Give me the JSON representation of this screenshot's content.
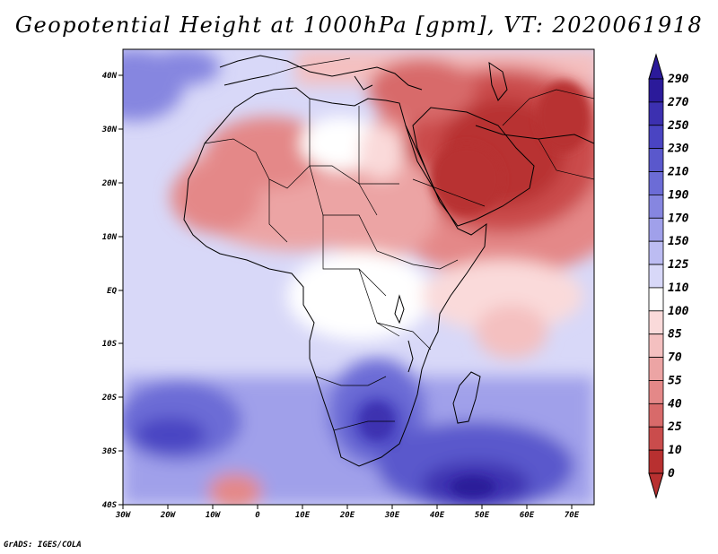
{
  "title": "Geopotential Height at 1000hPa [gpm], VT: 2020061918",
  "credit": "GrADS: IGES/COLA",
  "axes": {
    "x_ticks": [
      "30W",
      "20W",
      "10W",
      "0",
      "10E",
      "20E",
      "30E",
      "40E",
      "50E",
      "60E",
      "70E"
    ],
    "y_ticks": [
      "40N",
      "30N",
      "20N",
      "10N",
      "EQ",
      "10S",
      "20S",
      "30S",
      "40S"
    ]
  },
  "colorbar": {
    "labels": [
      "290",
      "270",
      "250",
      "230",
      "210",
      "190",
      "170",
      "150",
      "125",
      "110",
      "100",
      "85",
      "70",
      "55",
      "40",
      "25",
      "10",
      "0"
    ],
    "colors": [
      "#2b1a9a",
      "#3c30b0",
      "#4a44c2",
      "#5a58cc",
      "#6c6cd6",
      "#8686e0",
      "#a0a0ea",
      "#bcbcf2",
      "#d8d8f8",
      "#ffffff",
      "#fadada",
      "#f4c0c0",
      "#eca4a4",
      "#e48888",
      "#d86a6a",
      "#ca4c4c",
      "#b83030"
    ]
  },
  "map": {
    "projection": "lat-lon",
    "lon_range": [
      -30,
      75
    ],
    "lat_range": [
      -40,
      45
    ],
    "palette": {
      "ocean_neutral": "#d8d8f8",
      "high_blue": "#5a58cc",
      "deep_blue": "#3c30b0",
      "low_red": "#b83030",
      "mid_red": "#e48888",
      "light_red": "#fadada",
      "coast": "#000000"
    }
  }
}
